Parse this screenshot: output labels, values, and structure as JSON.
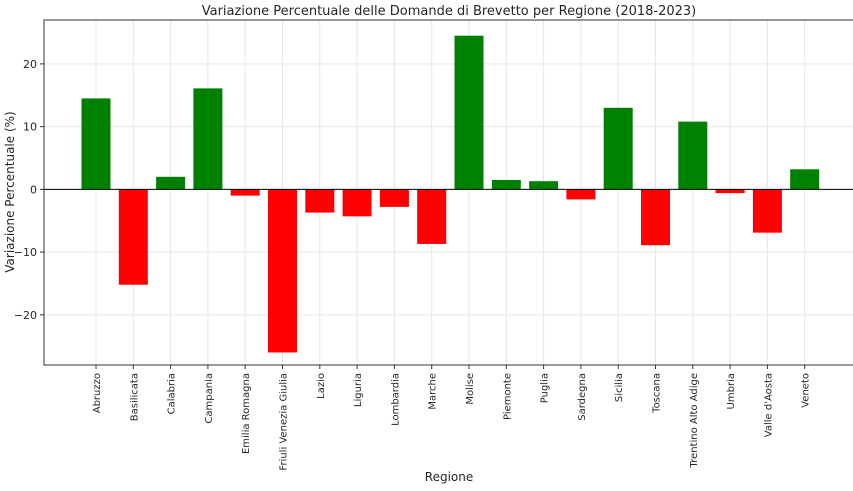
{
  "chart_data": {
    "type": "bar",
    "title": "Variazione Percentuale delle Domande di Brevetto per Regione (2018-2023)",
    "xlabel": "Regione",
    "ylabel": "Variazione Percentuale (%)",
    "ylim": [
      -28,
      27
    ],
    "yticks": [
      -20,
      -10,
      0,
      10,
      20
    ],
    "ytick_labels": [
      "−20",
      "−10",
      "0",
      "10",
      "20"
    ],
    "grid": true,
    "colors": {
      "positive": "#008000",
      "negative": "#ff0000"
    },
    "categories": [
      "Abruzzo",
      "Basilicata",
      "Calabria",
      "Campania",
      "Emilia Romagna",
      "Friuli Venezia Giulia",
      "Lazio",
      "Liguria",
      "Lombardia",
      "Marche",
      "Molise",
      "Piemonte",
      "Puglia",
      "Sardegna",
      "Sicilia",
      "Toscana",
      "Trentino Alto Adige",
      "Umbria",
      "Valle d'Aosta",
      "Veneto"
    ],
    "values": [
      14.5,
      -15.2,
      2.0,
      16.1,
      -1.0,
      -26.0,
      -3.7,
      -4.3,
      -2.8,
      -8.7,
      24.5,
      1.5,
      1.3,
      -1.6,
      13.0,
      -8.9,
      10.8,
      -0.6,
      -6.9,
      3.2
    ]
  }
}
